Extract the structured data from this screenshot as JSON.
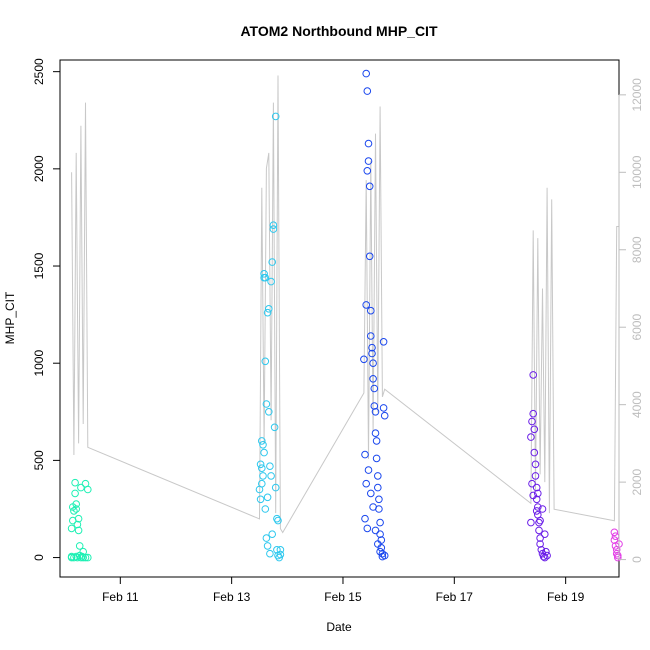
{
  "chart_data": {
    "type": "scatter",
    "title": "ATOM2 Northbound MHP_CIT",
    "xlabel": "Date",
    "ylabel": "MHP_CIT",
    "x_range": [
      "2024-02-09T22:00",
      "2024-02-19T23:00"
    ],
    "x_ticks": [
      {
        "label": "Feb 11",
        "date": "2024-02-11"
      },
      {
        "label": "Feb 13",
        "date": "2024-02-13"
      },
      {
        "label": "Feb 15",
        "date": "2024-02-15"
      },
      {
        "label": "Feb 17",
        "date": "2024-02-17"
      },
      {
        "label": "Feb 19",
        "date": "2024-02-19"
      }
    ],
    "ylim": [
      -100,
      2560
    ],
    "y_ticks": [
      "0",
      "500",
      "1000",
      "1500",
      "2000",
      "2500"
    ],
    "y2lim": [
      -450,
      12900
    ],
    "y2_ticks": [
      "0",
      "2000",
      "4000",
      "6000",
      "8000",
      "10000",
      "12000"
    ],
    "y2_color": "#bdbdbd",
    "grid": false,
    "secondary_line": {
      "color": "#c8c8c8",
      "points": [
        [
          "2024-02-10T03:00",
          10000
        ],
        [
          "2024-02-10T04:00",
          2700
        ],
        [
          "2024-02-10T05:00",
          10500
        ],
        [
          "2024-02-10T06:00",
          3000
        ],
        [
          "2024-02-10T07:00",
          11200
        ],
        [
          "2024-02-10T08:00",
          3500
        ],
        [
          "2024-02-10T09:00",
          11800
        ],
        [
          "2024-02-10T10:00",
          2900
        ],
        [
          "2024-02-13T12:00",
          1050
        ],
        [
          "2024-02-13T13:00",
          9600
        ],
        [
          "2024-02-13T14:00",
          3000
        ],
        [
          "2024-02-13T15:00",
          10100
        ],
        [
          "2024-02-13T16:00",
          10500
        ],
        [
          "2024-02-13T17:00",
          3600
        ],
        [
          "2024-02-13T18:00",
          11800
        ],
        [
          "2024-02-13T19:00",
          1200
        ],
        [
          "2024-02-13T20:00",
          12500
        ],
        [
          "2024-02-13T21:00",
          800
        ],
        [
          "2024-02-13T22:00",
          700
        ],
        [
          "2024-02-15T09:00",
          4300
        ],
        [
          "2024-02-15T10:00",
          9800
        ],
        [
          "2024-02-15T11:00",
          2600
        ],
        [
          "2024-02-15T12:00",
          10300
        ],
        [
          "2024-02-15T13:00",
          3300
        ],
        [
          "2024-02-15T14:00",
          11000
        ],
        [
          "2024-02-15T15:00",
          3800
        ],
        [
          "2024-02-15T16:00",
          11700
        ],
        [
          "2024-02-15T17:00",
          4200
        ],
        [
          "2024-02-15T18:00",
          4400
        ],
        [
          "2024-02-18T09:00",
          1450
        ],
        [
          "2024-02-18T10:00",
          8500
        ],
        [
          "2024-02-18T11:00",
          1800
        ],
        [
          "2024-02-18T12:00",
          8300
        ],
        [
          "2024-02-18T13:00",
          2200
        ],
        [
          "2024-02-18T14:00",
          7000
        ],
        [
          "2024-02-18T15:00",
          2000
        ],
        [
          "2024-02-18T16:00",
          9600
        ],
        [
          "2024-02-18T17:00",
          1200
        ],
        [
          "2024-02-18T18:00",
          9300
        ],
        [
          "2024-02-18T19:00",
          1300
        ],
        [
          "2024-02-19T21:00",
          1000
        ],
        [
          "2024-02-19T22:00",
          8600
        ],
        [
          "2024-02-19T23:00",
          8600
        ]
      ]
    },
    "series": [
      {
        "color": "#1ef0b4",
        "points": [
          [
            "2024-02-10T03:00",
            0
          ],
          [
            "2024-02-10T03:00",
            5
          ],
          [
            "2024-02-10T03:00",
            150
          ],
          [
            "2024-02-10T03:30",
            190
          ],
          [
            "2024-02-10T03:30",
            260
          ],
          [
            "2024-02-10T04:00",
            240
          ],
          [
            "2024-02-10T04:00",
            0
          ],
          [
            "2024-02-10T04:30",
            330
          ],
          [
            "2024-02-10T04:30",
            385
          ],
          [
            "2024-02-10T05:00",
            250
          ],
          [
            "2024-02-10T05:00",
            275
          ],
          [
            "2024-02-10T05:30",
            170
          ],
          [
            "2024-02-10T05:30",
            0
          ],
          [
            "2024-02-10T06:00",
            200
          ],
          [
            "2024-02-10T06:00",
            140
          ],
          [
            "2024-02-10T06:30",
            60
          ],
          [
            "2024-02-10T07:00",
            0
          ],
          [
            "2024-02-10T07:00",
            360
          ],
          [
            "2024-02-10T07:30",
            5
          ],
          [
            "2024-02-10T08:00",
            0
          ],
          [
            "2024-02-10T08:00",
            30
          ],
          [
            "2024-02-10T09:00",
            380
          ],
          [
            "2024-02-10T09:00",
            0
          ],
          [
            "2024-02-10T10:00",
            350
          ],
          [
            "2024-02-10T10:00",
            0
          ],
          [
            "2024-02-10T05:00",
            5
          ],
          [
            "2024-02-10T06:30",
            10
          ]
        ]
      },
      {
        "color": "#2ec8ee",
        "points": [
          [
            "2024-02-13T12:00",
            350
          ],
          [
            "2024-02-13T12:30",
            480
          ],
          [
            "2024-02-13T13:00",
            600
          ],
          [
            "2024-02-13T13:30",
            420
          ],
          [
            "2024-02-13T13:30",
            580
          ],
          [
            "2024-02-13T14:00",
            1460
          ],
          [
            "2024-02-13T14:00",
            1440
          ],
          [
            "2024-02-13T14:30",
            1440
          ],
          [
            "2024-02-13T14:30",
            1010
          ],
          [
            "2024-02-13T15:00",
            790
          ],
          [
            "2024-02-13T15:00",
            100
          ],
          [
            "2024-02-13T15:30",
            1260
          ],
          [
            "2024-02-13T16:00",
            1280
          ],
          [
            "2024-02-13T16:00",
            750
          ],
          [
            "2024-02-13T16:30",
            470
          ],
          [
            "2024-02-13T16:30",
            20
          ],
          [
            "2024-02-13T17:00",
            1420
          ],
          [
            "2024-02-13T17:30",
            1520
          ],
          [
            "2024-02-13T18:00",
            1710
          ],
          [
            "2024-02-13T18:00",
            1690
          ],
          [
            "2024-02-13T18:30",
            670
          ],
          [
            "2024-02-13T19:00",
            2270
          ],
          [
            "2024-02-13T19:00",
            360
          ],
          [
            "2024-02-13T19:30",
            40
          ],
          [
            "2024-02-13T20:00",
            10
          ],
          [
            "2024-02-13T20:00",
            190
          ],
          [
            "2024-02-13T20:30",
            0
          ],
          [
            "2024-02-13T21:00",
            40
          ],
          [
            "2024-02-13T21:00",
            15
          ],
          [
            "2024-02-13T13:00",
            380
          ],
          [
            "2024-02-13T13:00",
            460
          ],
          [
            "2024-02-13T14:00",
            540
          ],
          [
            "2024-02-13T14:30",
            250
          ],
          [
            "2024-02-13T15:30",
            310
          ],
          [
            "2024-02-13T15:30",
            60
          ],
          [
            "2024-02-13T17:00",
            420
          ],
          [
            "2024-02-13T17:30",
            120
          ],
          [
            "2024-02-13T12:30",
            300
          ],
          [
            "2024-02-13T19:30",
            200
          ]
        ]
      },
      {
        "color": "#1a47ee",
        "points": [
          [
            "2024-02-15T09:00",
            1020
          ],
          [
            "2024-02-15T09:30",
            530
          ],
          [
            "2024-02-15T10:00",
            1300
          ],
          [
            "2024-02-15T10:00",
            2490
          ],
          [
            "2024-02-15T10:30",
            2400
          ],
          [
            "2024-02-15T10:30",
            1990
          ],
          [
            "2024-02-15T11:00",
            2130
          ],
          [
            "2024-02-15T11:00",
            2040
          ],
          [
            "2024-02-15T11:30",
            1910
          ],
          [
            "2024-02-15T11:30",
            1550
          ],
          [
            "2024-02-15T12:00",
            1270
          ],
          [
            "2024-02-15T12:00",
            1140
          ],
          [
            "2024-02-15T12:30",
            1080
          ],
          [
            "2024-02-15T12:30",
            1050
          ],
          [
            "2024-02-15T13:00",
            1000
          ],
          [
            "2024-02-15T13:00",
            920
          ],
          [
            "2024-02-15T13:30",
            870
          ],
          [
            "2024-02-15T13:30",
            780
          ],
          [
            "2024-02-15T14:00",
            750
          ],
          [
            "2024-02-15T14:00",
            640
          ],
          [
            "2024-02-15T14:30",
            600
          ],
          [
            "2024-02-15T14:30",
            510
          ],
          [
            "2024-02-15T15:00",
            420
          ],
          [
            "2024-02-15T15:00",
            360
          ],
          [
            "2024-02-15T15:30",
            300
          ],
          [
            "2024-02-15T15:30",
            250
          ],
          [
            "2024-02-15T16:00",
            180
          ],
          [
            "2024-02-15T16:00",
            120
          ],
          [
            "2024-02-15T16:30",
            90
          ],
          [
            "2024-02-15T16:30",
            50
          ],
          [
            "2024-02-15T17:00",
            20
          ],
          [
            "2024-02-15T17:00",
            5
          ],
          [
            "2024-02-15T17:30",
            1110
          ],
          [
            "2024-02-15T17:30",
            770
          ],
          [
            "2024-02-15T18:00",
            730
          ],
          [
            "2024-02-15T18:00",
            10
          ],
          [
            "2024-02-15T10:00",
            380
          ],
          [
            "2024-02-15T11:00",
            450
          ],
          [
            "2024-02-15T12:00",
            330
          ],
          [
            "2024-02-15T13:00",
            260
          ],
          [
            "2024-02-15T14:00",
            140
          ],
          [
            "2024-02-15T15:00",
            70
          ],
          [
            "2024-02-15T16:00",
            30
          ],
          [
            "2024-02-15T09:30",
            200
          ],
          [
            "2024-02-15T10:30",
            150
          ]
        ]
      },
      {
        "color": "#6a1ee8",
        "points": [
          [
            "2024-02-18T09:00",
            620
          ],
          [
            "2024-02-18T09:30",
            700
          ],
          [
            "2024-02-18T10:00",
            940
          ],
          [
            "2024-02-18T10:00",
            740
          ],
          [
            "2024-02-18T10:30",
            660
          ],
          [
            "2024-02-18T10:30",
            540
          ],
          [
            "2024-02-18T11:00",
            480
          ],
          [
            "2024-02-18T11:00",
            420
          ],
          [
            "2024-02-18T11:30",
            360
          ],
          [
            "2024-02-18T11:30",
            300
          ],
          [
            "2024-02-18T12:00",
            260
          ],
          [
            "2024-02-18T12:00",
            220
          ],
          [
            "2024-02-18T12:30",
            180
          ],
          [
            "2024-02-18T12:30",
            140
          ],
          [
            "2024-02-18T13:00",
            100
          ],
          [
            "2024-02-18T13:00",
            70
          ],
          [
            "2024-02-18T13:30",
            40
          ],
          [
            "2024-02-18T14:00",
            20
          ],
          [
            "2024-02-18T14:30",
            5
          ],
          [
            "2024-02-18T15:00",
            0
          ],
          [
            "2024-02-18T15:30",
            30
          ],
          [
            "2024-02-18T16:00",
            10
          ],
          [
            "2024-02-18T09:30",
            380
          ],
          [
            "2024-02-18T10:00",
            320
          ],
          [
            "2024-02-18T12:00",
            330
          ],
          [
            "2024-02-18T13:00",
            190
          ],
          [
            "2024-02-18T14:00",
            250
          ],
          [
            "2024-02-18T15:00",
            120
          ],
          [
            "2024-02-18T11:30",
            240
          ],
          [
            "2024-02-18T09:00",
            180
          ]
        ]
      },
      {
        "color": "#e23ee6",
        "points": [
          [
            "2024-02-19T21:00",
            130
          ],
          [
            "2024-02-19T21:00",
            90
          ],
          [
            "2024-02-19T21:30",
            110
          ],
          [
            "2024-02-19T21:30",
            60
          ],
          [
            "2024-02-19T22:00",
            40
          ],
          [
            "2024-02-19T22:00",
            20
          ],
          [
            "2024-02-19T22:30",
            10
          ],
          [
            "2024-02-19T22:30",
            0
          ],
          [
            "2024-02-19T23:00",
            70
          ]
        ]
      }
    ]
  }
}
